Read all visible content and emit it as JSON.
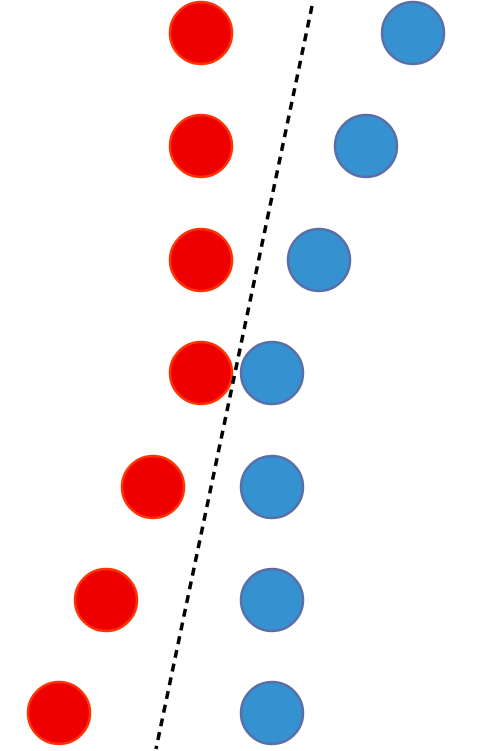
{
  "diagram": {
    "rows": [
      {
        "red": "inner",
        "blue": "far"
      },
      {
        "red": "inner",
        "blue": "mid"
      },
      {
        "red": "inner",
        "blue": "near"
      },
      {
        "red": "inner",
        "blue": "touching"
      },
      {
        "red": "near",
        "blue": "touching"
      },
      {
        "red": "mid",
        "blue": "touching"
      },
      {
        "red": "far",
        "blue": "touching"
      }
    ],
    "colors": {
      "red_fill": "#EE0000",
      "red_stroke": "#FF3300",
      "blue_fill": "#3591D0",
      "blue_stroke": "#5A6FA8",
      "divider": "#000000"
    },
    "divider_style": "dashed"
  }
}
